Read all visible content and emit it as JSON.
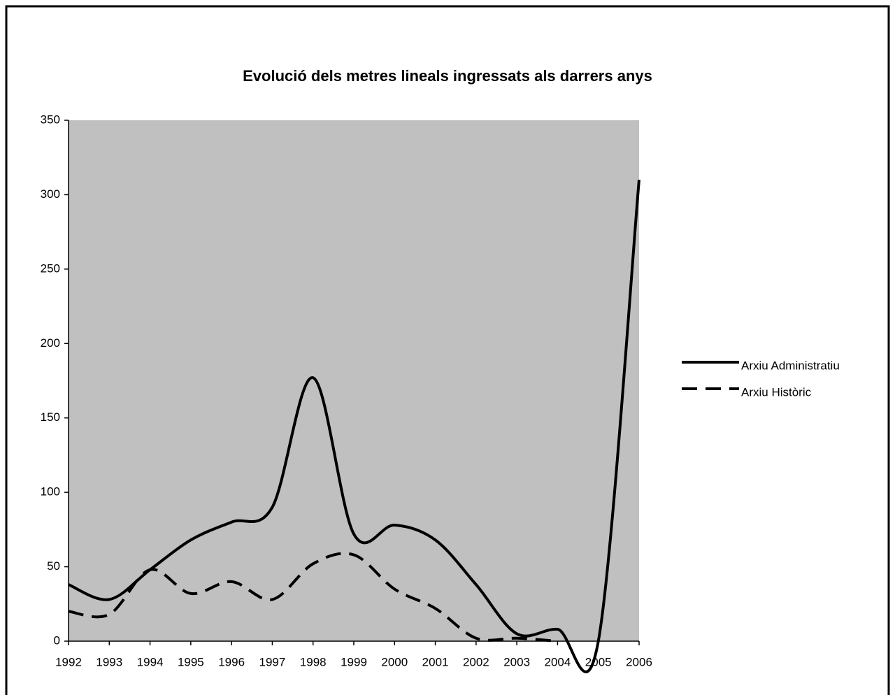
{
  "chart_data": {
    "type": "line",
    "title": "Evolució dels metres lineals ingressats als darrers anys",
    "x": [
      1992,
      1993,
      1994,
      1995,
      1996,
      1997,
      1998,
      1999,
      2000,
      2001,
      2002,
      2003,
      2004,
      2005,
      2006
    ],
    "series": [
      {
        "name": "Arxiu Administratiu",
        "color": "#000000",
        "dash": "solid",
        "values": [
          38,
          28,
          48,
          68,
          80,
          90,
          177,
          72,
          78,
          68,
          38,
          5,
          8,
          0,
          310
        ]
      },
      {
        "name": "Arxiu Històric",
        "color": "#000000",
        "dash": "dashed",
        "values": [
          20,
          18,
          48,
          32,
          40,
          28,
          52,
          58,
          35,
          22,
          2,
          2,
          0,
          null,
          null
        ]
      }
    ],
    "xlim": [
      1992,
      2006
    ],
    "xticks": [
      1992,
      1993,
      1994,
      1995,
      1996,
      1997,
      1998,
      1999,
      2000,
      2001,
      2002,
      2003,
      2004,
      2005,
      2006
    ],
    "ylim": [
      0,
      350
    ],
    "yticks": [
      0,
      50,
      100,
      150,
      200,
      250,
      300,
      350
    ],
    "background": "#c0c0c0",
    "legend": "right"
  }
}
